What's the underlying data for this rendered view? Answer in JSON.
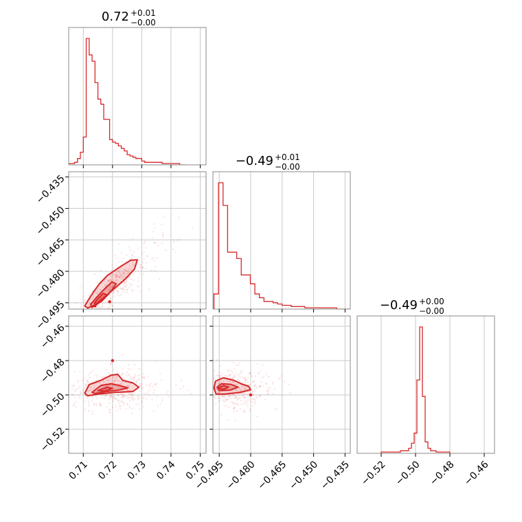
{
  "chart_data": {
    "type": "corner",
    "accent_color": "#d62728",
    "grid": true,
    "titles": [
      {
        "value": "0.72",
        "plus": "+0.01",
        "minus": "−0.00"
      },
      {
        "value": "−0.49",
        "plus": "+0.01",
        "minus": "−0.00"
      },
      {
        "value": "−0.49",
        "plus": "+0.00",
        "minus": "−0.00"
      }
    ],
    "params": [
      {
        "range": [
          0.705,
          0.752
        ],
        "ticks": [
          0.71,
          0.72,
          0.73,
          0.74,
          0.75
        ],
        "tick_labels": [
          "0.71",
          "0.72",
          "0.73",
          "0.74",
          "0.75"
        ]
      },
      {
        "range": [
          -0.498,
          -0.4325
        ],
        "ticks": [
          -0.495,
          -0.48,
          -0.465,
          -0.45,
          -0.435
        ],
        "tick_labels": [
          "−0.495",
          "−0.480",
          "−0.465",
          "−0.450",
          "−0.435"
        ]
      },
      {
        "range": [
          -0.534,
          -0.454
        ],
        "ticks": [
          -0.52,
          -0.5,
          -0.48,
          -0.46
        ],
        "tick_labels": [
          "−0.52",
          "−0.50",
          "−0.48",
          "−0.46"
        ]
      }
    ],
    "histograms": [
      {
        "bin_edges": [
          0.705,
          0.745
        ],
        "counts": [
          1,
          1,
          2,
          5,
          10,
          22,
          100,
          87,
          82,
          65,
          52,
          48,
          36,
          36,
          20,
          18,
          17,
          15,
          13,
          11,
          8,
          7,
          6,
          5,
          5,
          3,
          2,
          2,
          2,
          2,
          2,
          2,
          1,
          1,
          1,
          1,
          1,
          1,
          0,
          0
        ]
      },
      {
        "bin_edges": [
          -0.4975,
          -0.4325
        ],
        "counts": [
          12,
          100,
          82,
          45,
          45,
          40,
          27,
          27,
          20,
          12,
          9,
          6,
          6,
          5,
          4,
          3,
          3,
          2,
          2,
          2,
          1,
          1,
          1,
          1,
          1,
          1,
          1,
          0,
          0,
          0
        ]
      },
      {
        "bin_edges": [
          -0.52,
          -0.48
        ],
        "counts": [
          1,
          1,
          1,
          1,
          1,
          1,
          1,
          2,
          2,
          2,
          4,
          8,
          16,
          58,
          100,
          45,
          9,
          4,
          2,
          2,
          1,
          1,
          1,
          1,
          1
        ]
      }
    ],
    "contour_panels": [
      {
        "x_param": 0,
        "y_param": 1,
        "scatter": {
          "center": [
            0.7185,
            -0.4895
          ],
          "spread": [
            0.006,
            0.008
          ],
          "correlation": 0.85
        },
        "contours": [
          [
            [
              0.7115,
              -0.4975
            ],
            [
              0.714,
              -0.496
            ],
            [
              0.717,
              -0.4925
            ],
            [
              0.72,
              -0.489
            ],
            [
              0.7245,
              -0.4835
            ],
            [
              0.7275,
              -0.479
            ],
            [
              0.7285,
              -0.4745
            ],
            [
              0.7262,
              -0.4747
            ],
            [
              0.7222,
              -0.4782
            ],
            [
              0.7182,
              -0.482
            ],
            [
              0.7155,
              -0.486
            ],
            [
              0.7135,
              -0.4898
            ],
            [
              0.7118,
              -0.4935
            ],
            [
              0.7105,
              -0.4965
            ]
          ],
          [
            [
              0.713,
              -0.4972
            ],
            [
              0.7165,
              -0.494
            ],
            [
              0.7195,
              -0.4895
            ],
            [
              0.7212,
              -0.486
            ],
            [
              0.7198,
              -0.485
            ],
            [
              0.7172,
              -0.4885
            ],
            [
              0.7145,
              -0.4925
            ],
            [
              0.7125,
              -0.4958
            ]
          ],
          [
            [
              0.7142,
              -0.4962
            ],
            [
              0.7165,
              -0.4938
            ],
            [
              0.718,
              -0.4912
            ],
            [
              0.7168,
              -0.4905
            ],
            [
              0.715,
              -0.493
            ],
            [
              0.7138,
              -0.4952
            ]
          ]
        ],
        "dots": [
          [
            0.719,
            -0.4945
          ],
          [
            0.714,
            -0.4965
          ]
        ]
      },
      {
        "x_param": 0,
        "y_param": 2,
        "scatter": {
          "center": [
            0.7175,
            -0.4965
          ],
          "spread": [
            0.007,
            0.006
          ],
          "correlation": 0.1
        },
        "contours": [
          [
            [
              0.7105,
              -0.499
            ],
            [
              0.712,
              -0.494
            ],
            [
              0.716,
              -0.4915
            ],
            [
              0.7195,
              -0.4885
            ],
            [
              0.7218,
              -0.488
            ],
            [
              0.7235,
              -0.4915
            ],
            [
              0.727,
              -0.493
            ],
            [
              0.729,
              -0.4955
            ],
            [
              0.727,
              -0.498
            ],
            [
              0.721,
              -0.4985
            ],
            [
              0.715,
              -0.4995
            ],
            [
              0.7115,
              -0.5005
            ]
          ],
          [
            [
              0.713,
              -0.4985
            ],
            [
              0.716,
              -0.4945
            ],
            [
              0.7195,
              -0.4935
            ],
            [
              0.7225,
              -0.4945
            ],
            [
              0.7252,
              -0.496
            ],
            [
              0.722,
              -0.4972
            ],
            [
              0.718,
              -0.498
            ],
            [
              0.714,
              -0.4992
            ]
          ],
          [
            [
              0.715,
              -0.4975
            ],
            [
              0.718,
              -0.4955
            ],
            [
              0.72,
              -0.4962
            ],
            [
              0.7175,
              -0.4978
            ]
          ]
        ],
        "dots": [
          [
            0.72,
            -0.48
          ]
        ]
      },
      {
        "x_param": 1,
        "y_param": 2,
        "scatter": {
          "center": [
            -0.4915,
            -0.497
          ],
          "spread": [
            0.008,
            0.006
          ],
          "correlation": 0.0
        },
        "contours": [
          [
            [
              -0.4975,
              -0.496
            ],
            [
              -0.4968,
              -0.492
            ],
            [
              -0.493,
              -0.49
            ],
            [
              -0.488,
              -0.4915
            ],
            [
              -0.4845,
              -0.4935
            ],
            [
              -0.481,
              -0.495
            ],
            [
              -0.48,
              -0.497
            ],
            [
              -0.485,
              -0.4985
            ],
            [
              -0.492,
              -0.4995
            ],
            [
              -0.4965,
              -0.4995
            ]
          ],
          [
            [
              -0.496,
              -0.4955
            ],
            [
              -0.494,
              -0.4935
            ],
            [
              -0.4895,
              -0.4938
            ],
            [
              -0.486,
              -0.4955
            ],
            [
              -0.49,
              -0.4972
            ],
            [
              -0.495,
              -0.4975
            ]
          ],
          [
            [
              -0.4955,
              -0.496
            ],
            [
              -0.493,
              -0.4945
            ],
            [
              -0.4905,
              -0.4955
            ],
            [
              -0.493,
              -0.4968
            ]
          ]
        ],
        "dots": [
          [
            -0.48,
            -0.5
          ]
        ]
      }
    ]
  }
}
